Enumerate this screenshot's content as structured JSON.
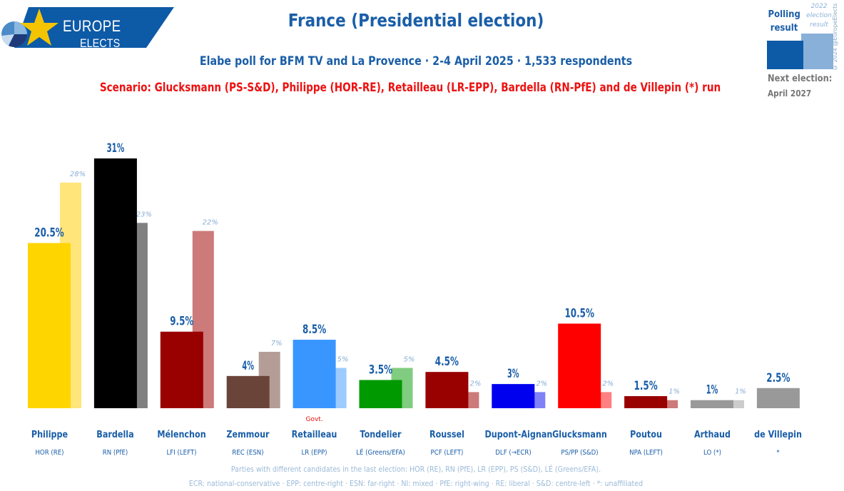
{
  "brand": {
    "line1": "EUROPE",
    "line2": "ELECTS"
  },
  "header": {
    "title": "France (Presidential election)",
    "subtitle": "Elabe poll for BFM TV and La Provence · 2-4 April 2025 · 1,533 respondents",
    "scenario": "Scenario: Glucksmann (PS-S&D), Philippe (HOR-RE), Retailleau (LR-EPP), Bardella (RN-PfE) and de Villepin (*) run"
  },
  "legend": {
    "polling_label": "Polling result",
    "election_label": "2022 election result",
    "copyright": "© 2024 @EuropeElects",
    "polling_color": "#0d5aa7",
    "election_color": "#88b0d8"
  },
  "next_election": {
    "label": "Next election:",
    "date": "April 2027"
  },
  "govt_label": "Govt.",
  "footer": {
    "note": "Parties with different candidates in the last election: HOR (RE), RN (PfE), LR (EPP), PS (S&D), LÉ (Greens/EFA).",
    "glossary": "ECR: national-conservative · EPP: centre-right · ESN: far-right · NI: mixed · PfE: right-wing · RE: liberal · S&D: centre-left · *: unaffiliated"
  },
  "chart_data": {
    "type": "bar",
    "title": "France (Presidential election)",
    "xlabel": "",
    "ylabel": "",
    "ylim": [
      0,
      31
    ],
    "grid": false,
    "unit": "%",
    "categories": [
      "Philippe",
      "Bardella",
      "Mélenchon",
      "Zemmour",
      "Retailleau",
      "Tondelier",
      "Roussel",
      "Dupont-Aignan",
      "Glucksmann",
      "Poutou",
      "Arthaud",
      "de Villepin"
    ],
    "parties": [
      "HOR (RE)",
      "RN (PfE)",
      "LFI (LEFT)",
      "REC (ESN)",
      "LR (EPP)",
      "LÉ (Greens/EFA)",
      "PCF (LEFT)",
      "DLF (→ECR)",
      "PS/PP (S&D)",
      "NPA (LEFT)",
      "LO (*)",
      "*"
    ],
    "government": [
      false,
      false,
      false,
      false,
      true,
      false,
      false,
      false,
      false,
      false,
      false,
      false
    ],
    "series": [
      {
        "name": "Polling result",
        "values": [
          20.5,
          31,
          9.5,
          4,
          8.5,
          3.5,
          4.5,
          3,
          10.5,
          1.5,
          1,
          2.5
        ],
        "labels": [
          "20.5%",
          "31%",
          "9.5%",
          "4%",
          "8.5%",
          "3.5%",
          "4.5%",
          "3%",
          "10.5%",
          "1.5%",
          "1%",
          "2.5%"
        ],
        "colors": [
          "#ffd500",
          "#000000",
          "#990000",
          "#6b4439",
          "#3a96ff",
          "#009900",
          "#990000",
          "#0000ee",
          "#ff0000",
          "#990000",
          "#999999",
          "#999999"
        ]
      },
      {
        "name": "2022 election result",
        "values": [
          28,
          23,
          22,
          7,
          5,
          5,
          2,
          2,
          2,
          1,
          1,
          null
        ],
        "labels": [
          "28%",
          "23%",
          "22%",
          "7%",
          "5%",
          "5%",
          "2%",
          "2%",
          "2%",
          "1%",
          "1%",
          ""
        ],
        "colors": [
          "#ffe57a",
          "#808080",
          "#cc7a7a",
          "#b59d97",
          "#9dcbff",
          "#80cc80",
          "#cc7a7a",
          "#8080f7",
          "#ff8080",
          "#cc7a7a",
          "#cccccc",
          "#cccccc"
        ]
      }
    ]
  }
}
